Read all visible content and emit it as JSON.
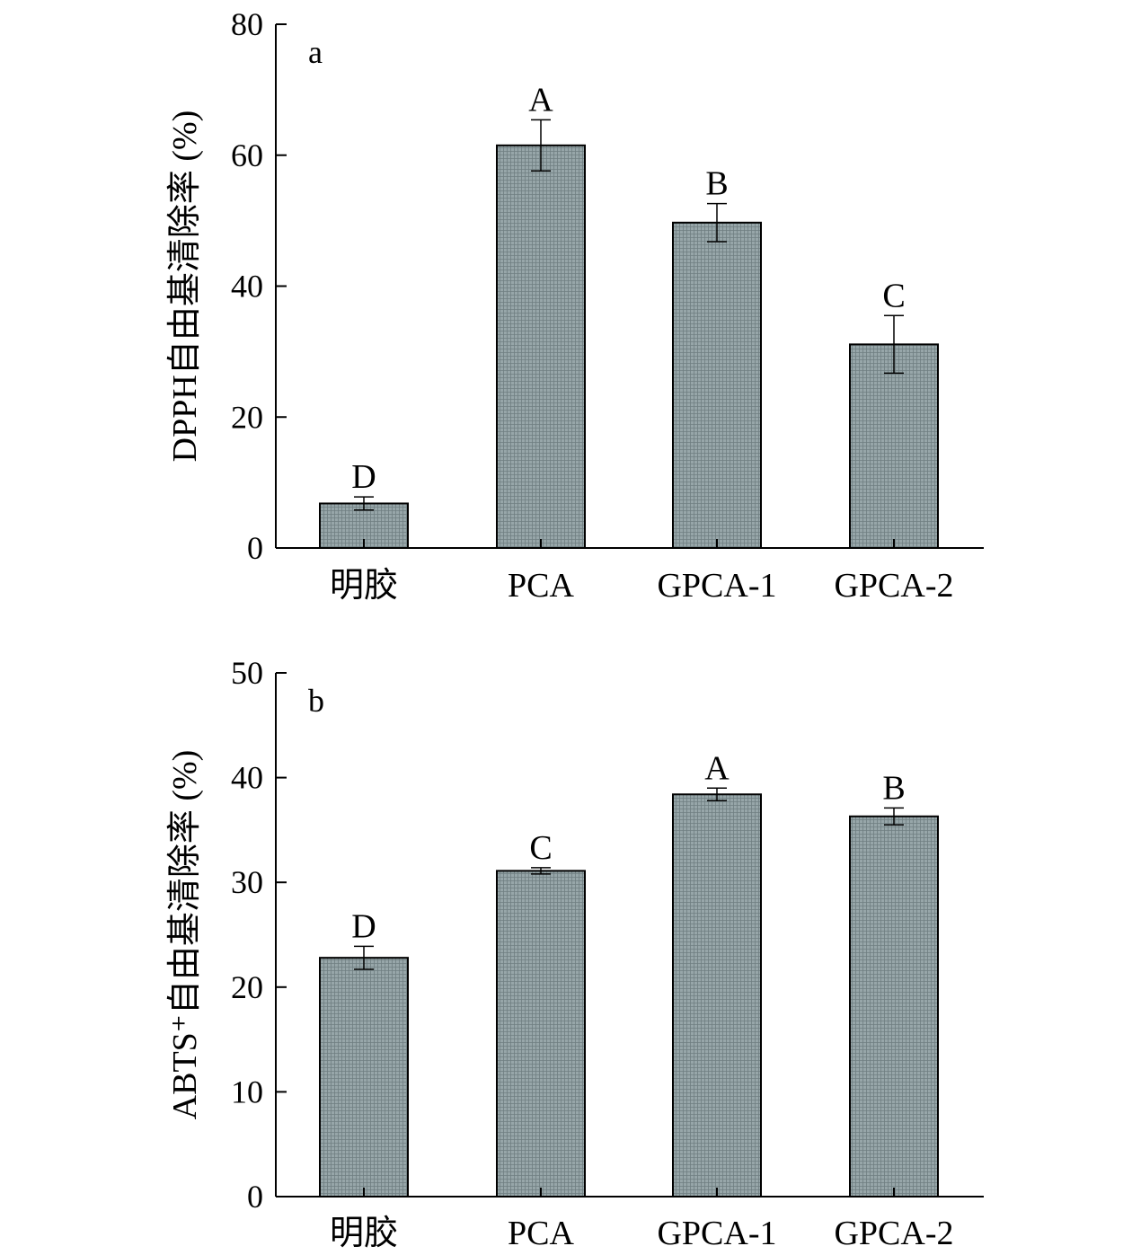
{
  "colors": {
    "bar_fill": "#8f9ea1",
    "bar_stroke": "#000000",
    "axis": "#000000"
  },
  "chart_data": [
    {
      "type": "bar",
      "panel_label": "a",
      "ylabel": "DPPH自由基清除率 (%)",
      "xlabel": "",
      "categories": [
        "明胶",
        "PCA",
        "GPCA-1",
        "GPCA-2"
      ],
      "values": [
        6.8,
        61.5,
        49.7,
        31.1
      ],
      "errors": [
        1.0,
        3.9,
        2.9,
        4.4
      ],
      "significance": [
        "D",
        "A",
        "B",
        "C"
      ],
      "ylim": [
        0,
        80
      ],
      "yticks": [
        0,
        20,
        40,
        60,
        80
      ],
      "grid": false,
      "legend": "none"
    },
    {
      "type": "bar",
      "panel_label": "b",
      "ylabel": "ABTS⁺自由基清除率 (%)",
      "xlabel": "",
      "categories": [
        "明胶",
        "PCA",
        "GPCA-1",
        "GPCA-2"
      ],
      "values": [
        22.8,
        31.1,
        38.4,
        36.3
      ],
      "errors": [
        1.1,
        0.3,
        0.6,
        0.8
      ],
      "significance": [
        "D",
        "C",
        "A",
        "B"
      ],
      "ylim": [
        0,
        50
      ],
      "yticks": [
        0,
        10,
        20,
        30,
        40,
        50
      ],
      "grid": false,
      "legend": "none"
    }
  ]
}
